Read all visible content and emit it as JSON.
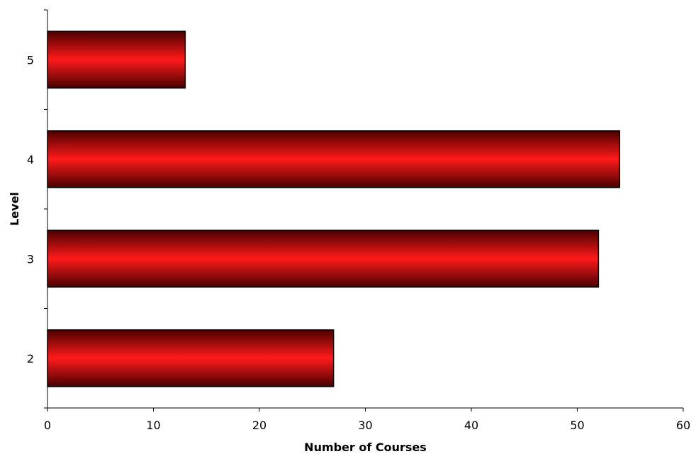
{
  "chart_data": {
    "type": "bar",
    "orientation": "horizontal",
    "categories": [
      "2",
      "3",
      "4",
      "5"
    ],
    "values": [
      27,
      52,
      54,
      13
    ],
    "title": "",
    "xlabel": "Number of Courses",
    "ylabel": "Level",
    "xlim": [
      0,
      60
    ],
    "xticks": [
      "0",
      "10",
      "20",
      "30",
      "40",
      "50",
      "60"
    ],
    "grid": false,
    "legend": "none",
    "colors": {
      "bar_dark": "#5a0000",
      "bar_light": "#ff1a1a",
      "axis": "#000000"
    }
  }
}
